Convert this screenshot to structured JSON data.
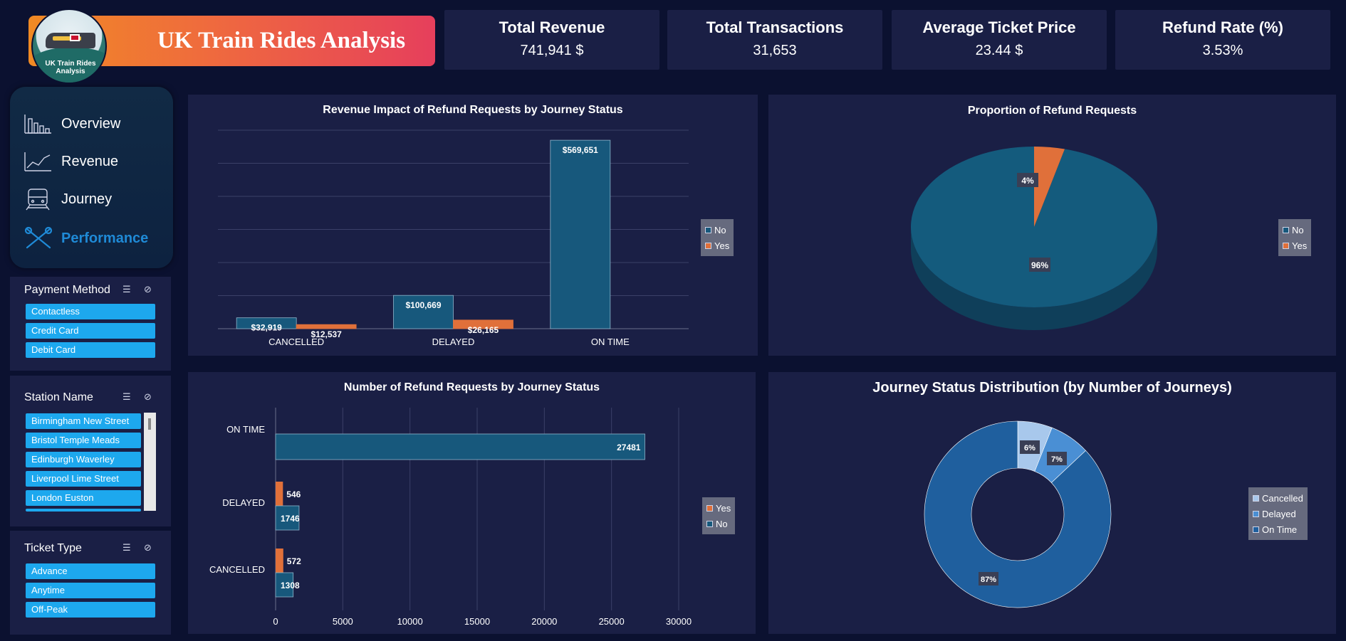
{
  "header": {
    "title": "UK Train Rides Analysis",
    "logo_text": "UK Train Rides Analysis"
  },
  "kpis": [
    {
      "title": "Total Revenue",
      "value": "741,941 $"
    },
    {
      "title": "Total Transactions",
      "value": "31,653"
    },
    {
      "title": "Average Ticket Price",
      "value": "23.44 $"
    },
    {
      "title": "Refund Rate (%)",
      "value": "3.53%"
    }
  ],
  "nav": {
    "items": [
      {
        "label": "Overview",
        "icon": "bar-chart-icon"
      },
      {
        "label": "Revenue",
        "icon": "line-chart-icon"
      },
      {
        "label": "Journey",
        "icon": "train-icon"
      },
      {
        "label": "Performance",
        "icon": "tools-icon",
        "active": true
      }
    ]
  },
  "slicers": {
    "payment": {
      "title": "Payment Method",
      "items": [
        "Contactless",
        "Credit Card",
        "Debit Card"
      ]
    },
    "station": {
      "title": "Station Name",
      "items": [
        "Birmingham New Street",
        "Bristol Temple Meads",
        "Edinburgh Waverley",
        "Liverpool Lime Street",
        "London Euston"
      ]
    },
    "ticket": {
      "title": "Ticket Type",
      "items": [
        "Advance",
        "Anytime",
        "Off-Peak"
      ]
    }
  },
  "colors": {
    "no": "#17587c",
    "yes": "#e0703a",
    "cancelled": "#a8c8ec",
    "delayed": "#4a8fd4",
    "ontime": "#1f5f9e"
  },
  "chart_data": [
    {
      "type": "bar",
      "title": "Revenue Impact of Refund Requests by Journey Status",
      "categories": [
        "CANCELLED",
        "DELAYED",
        "ON TIME"
      ],
      "series": [
        {
          "name": "No",
          "values": [
            32919,
            100669,
            569651
          ],
          "labels": [
            "$32,919",
            "$100,669",
            "$569,651"
          ]
        },
        {
          "name": "Yes",
          "values": [
            12537,
            26165,
            0
          ],
          "labels": [
            "$12,537",
            "$26,165",
            ""
          ]
        }
      ],
      "ylim": [
        0,
        600000
      ],
      "grid": true,
      "legend": "right"
    },
    {
      "type": "pie",
      "title": "Proportion of Refund Requests",
      "categories": [
        "No",
        "Yes"
      ],
      "values": [
        96,
        4
      ],
      "labels": [
        "96%",
        "4%"
      ],
      "legend": "right"
    },
    {
      "type": "bar",
      "orientation": "horizontal",
      "title": "Number of Refund Requests by Journey Status",
      "categories": [
        "ON TIME",
        "DELAYED",
        "CANCELLED"
      ],
      "series": [
        {
          "name": "Yes",
          "values": [
            0,
            546,
            572
          ]
        },
        {
          "name": "No",
          "values": [
            27481,
            1746,
            1308
          ]
        }
      ],
      "xlim": [
        0,
        30000
      ],
      "xticks": [
        "0",
        "5000",
        "10000",
        "15000",
        "20000",
        "25000",
        "30000"
      ],
      "grid": true,
      "legend": "right"
    },
    {
      "type": "pie",
      "variant": "donut",
      "title": "Journey Status Distribution (by Number of Journeys)",
      "categories": [
        "Cancelled",
        "Delayed",
        "On Time"
      ],
      "values": [
        6,
        7,
        87
      ],
      "labels": [
        "6%",
        "7%",
        "87%"
      ],
      "legend": "right"
    }
  ]
}
